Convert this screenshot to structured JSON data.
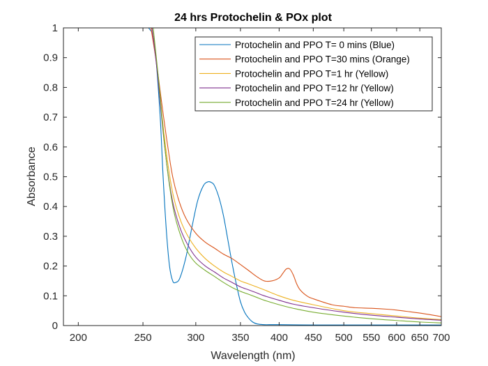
{
  "chart_data": {
    "type": "line",
    "title": "24 hrs Protochelin & POx plot",
    "xlabel": "Wavelength (nm)",
    "ylabel": "Absorbance",
    "xscale": "log",
    "xlim": [
      190,
      700
    ],
    "ylim": [
      0,
      1
    ],
    "xticks": [
      200,
      250,
      300,
      350,
      400,
      450,
      500,
      550,
      600,
      650,
      700
    ],
    "xtick_labels": [
      "200",
      "250",
      "300",
      "350",
      "400",
      "450",
      "500",
      "550",
      "600",
      "650",
      "700"
    ],
    "yticks": [
      0,
      0.1,
      0.2,
      0.3,
      0.4,
      0.5,
      0.6,
      0.7,
      0.8,
      0.9,
      1
    ],
    "ytick_labels": [
      "0",
      "0.1",
      "0.2",
      "0.3",
      "0.4",
      "0.5",
      "0.6",
      "0.7",
      "0.8",
      "0.9",
      "1"
    ],
    "grid": false,
    "legend_position": "top-right",
    "series": [
      {
        "name": "Protochelin and PPO T= 0 mins (Blue)",
        "color": "#0072bd",
        "x": [
          255,
          260,
          265,
          268,
          271,
          274,
          277,
          280,
          284,
          290,
          296,
          302,
          308,
          313,
          317,
          320,
          325,
          330,
          335,
          340,
          345,
          350,
          355,
          360,
          365,
          370,
          375,
          380,
          390,
          400,
          450,
          500,
          550,
          600,
          650,
          700
        ],
        "y": [
          1.0,
          0.95,
          0.72,
          0.5,
          0.32,
          0.2,
          0.15,
          0.145,
          0.16,
          0.23,
          0.33,
          0.42,
          0.47,
          0.483,
          0.48,
          0.47,
          0.43,
          0.37,
          0.29,
          0.21,
          0.14,
          0.08,
          0.045,
          0.025,
          0.012,
          0.006,
          0.004,
          0.003,
          0.003,
          0.003,
          0.002,
          0.002,
          0.002,
          0.002,
          0.002,
          0.002
        ]
      },
      {
        "name": "Protochelin and PPO T=30 mins (Orange)",
        "color": "#d95319",
        "x": [
          257,
          262,
          267,
          272,
          277,
          283,
          290,
          300,
          310,
          320,
          330,
          340,
          350,
          360,
          370,
          380,
          390,
          400,
          405,
          410,
          415,
          420,
          425,
          430,
          440,
          450,
          480,
          500,
          520,
          550,
          580,
          600,
          620,
          650,
          680,
          700
        ],
        "y": [
          1.0,
          0.88,
          0.74,
          0.61,
          0.5,
          0.42,
          0.36,
          0.31,
          0.28,
          0.26,
          0.24,
          0.225,
          0.205,
          0.185,
          0.165,
          0.15,
          0.15,
          0.16,
          0.175,
          0.19,
          0.19,
          0.17,
          0.14,
          0.12,
          0.1,
          0.09,
          0.07,
          0.065,
          0.06,
          0.058,
          0.055,
          0.052,
          0.048,
          0.042,
          0.035,
          0.03
        ]
      },
      {
        "name": "Protochelin and PPO T=1 hr (Yellow)",
        "color": "#edb120",
        "x": [
          258,
          263,
          268,
          273,
          278,
          285,
          292,
          300,
          310,
          320,
          330,
          340,
          350,
          360,
          370,
          380,
          400,
          420,
          450,
          500,
          550,
          600,
          650,
          700
        ],
        "y": [
          1.0,
          0.85,
          0.67,
          0.53,
          0.43,
          0.35,
          0.3,
          0.26,
          0.225,
          0.2,
          0.18,
          0.165,
          0.15,
          0.14,
          0.13,
          0.12,
          0.1,
          0.085,
          0.07,
          0.05,
          0.04,
          0.032,
          0.025,
          0.02
        ]
      },
      {
        "name": "Protochelin and PPO T=12 hr (Yellow)",
        "color": "#7e2f8e",
        "x": [
          258,
          263,
          268,
          273,
          278,
          285,
          292,
          300,
          310,
          320,
          330,
          340,
          350,
          360,
          370,
          380,
          400,
          420,
          450,
          500,
          550,
          600,
          650,
          700
        ],
        "y": [
          1.0,
          0.84,
          0.65,
          0.5,
          0.4,
          0.32,
          0.27,
          0.23,
          0.2,
          0.18,
          0.16,
          0.145,
          0.13,
          0.12,
          0.11,
          0.1,
          0.085,
          0.072,
          0.06,
          0.045,
          0.035,
          0.028,
          0.022,
          0.018
        ]
      },
      {
        "name": "Protochelin and PPO T=24 hr (Yellow)",
        "color": "#77ac30",
        "x": [
          259,
          264,
          269,
          274,
          279,
          286,
          293,
          300,
          310,
          320,
          330,
          340,
          350,
          360,
          370,
          380,
          400,
          420,
          450,
          500,
          550,
          600,
          650,
          700
        ],
        "y": [
          1.0,
          0.82,
          0.62,
          0.47,
          0.37,
          0.29,
          0.24,
          0.21,
          0.185,
          0.165,
          0.145,
          0.128,
          0.115,
          0.105,
          0.095,
          0.085,
          0.07,
          0.058,
          0.045,
          0.032,
          0.023,
          0.017,
          0.012,
          0.009
        ]
      }
    ]
  }
}
